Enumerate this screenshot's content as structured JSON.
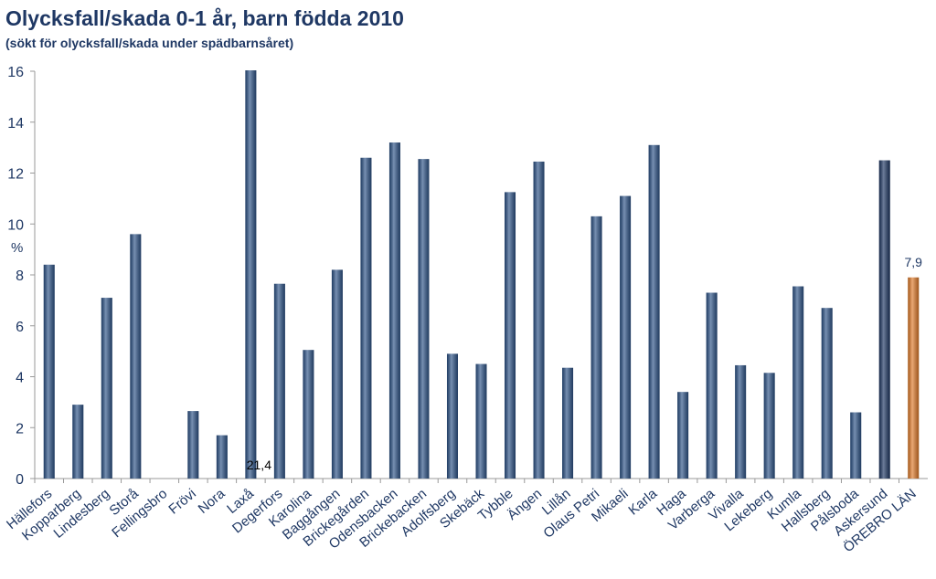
{
  "chart_data": {
    "type": "bar",
    "title": "Olycksfall/skada 0-1 år, barn födda 2010",
    "subtitle": "(sökt för olycksfall/skada under spädbarnsåret)",
    "y_label": "%",
    "categories": [
      "Hällefors",
      "Kopparberg",
      "Lindesberg",
      "Storå",
      "Fellingsbro",
      "Frövi",
      "Nora",
      "Laxå",
      "Degerfors",
      "Karolina",
      "Baggången",
      "Brickegården",
      "Odensbacken",
      "Brickebacken",
      "Adolfsberg",
      "Skebäck",
      "Tybble",
      "Ängen",
      "Lillån",
      "Olaus Petri",
      "Mikaeli",
      "Karla",
      "Haga",
      "Varberga",
      "Vivalla",
      "Lekeberg",
      "Kumla",
      "Hallsberg",
      "Pålsboda",
      "Askersund",
      "ÖREBRO LÄN"
    ],
    "values": [
      8.4,
      2.9,
      7.1,
      9.6,
      null,
      2.65,
      1.7,
      21.4,
      7.65,
      5.05,
      8.2,
      12.6,
      13.2,
      12.55,
      4.9,
      4.5,
      11.25,
      12.45,
      4.35,
      10.3,
      11.1,
      13.1,
      3.4,
      7.3,
      4.45,
      4.15,
      7.55,
      6.7,
      2.6,
      12.5,
      7.9
    ],
    "value_labels": [
      null,
      null,
      null,
      null,
      null,
      null,
      null,
      "21,4",
      null,
      null,
      null,
      null,
      null,
      null,
      null,
      null,
      null,
      null,
      null,
      null,
      null,
      null,
      null,
      null,
      null,
      null,
      null,
      null,
      null,
      null,
      "7,9"
    ],
    "colors": [
      "#2e5488",
      "#2e5488",
      "#2e5488",
      "#2e5488",
      "#2e5488",
      "#2e5488",
      "#2e5488",
      "#2e5488",
      "#2e5488",
      "#2e5488",
      "#2e5488",
      "#2e5488",
      "#2e5488",
      "#2e5488",
      "#2e5488",
      "#2e5488",
      "#2e5488",
      "#2e5488",
      "#2e5488",
      "#2e5488",
      "#2e5488",
      "#2e5488",
      "#2e5488",
      "#2e5488",
      "#2e5488",
      "#2e5488",
      "#2e5488",
      "#2e5488",
      "#2e5488",
      "#1f3864",
      "#e07b2a"
    ],
    "ylim": [
      0,
      16
    ],
    "yticks": [
      0,
      2,
      4,
      6,
      8,
      10,
      12,
      14,
      16
    ],
    "grid": false
  }
}
